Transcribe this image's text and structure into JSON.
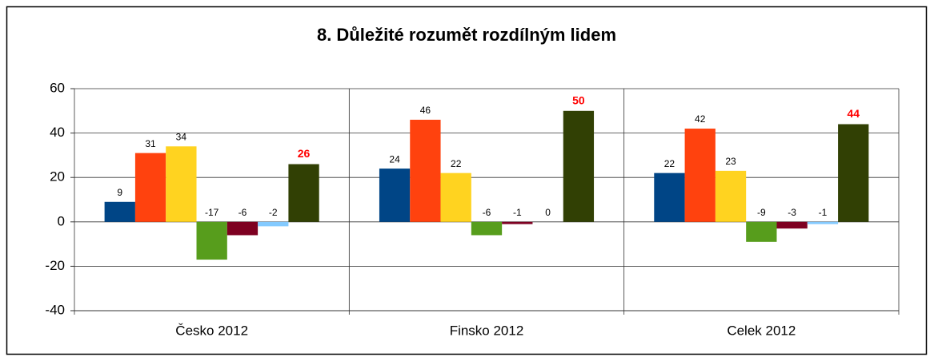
{
  "chart_data": {
    "type": "bar",
    "title": "8. Důležité rozumět rozdílným lidem",
    "categories": [
      "Česko 2012",
      "Finsko 2012",
      "Celek 2012"
    ],
    "series": [
      {
        "color": "#004586",
        "values": [
          9,
          24,
          22
        ]
      },
      {
        "color": "#ff420e",
        "values": [
          31,
          46,
          42
        ]
      },
      {
        "color": "#ffd320",
        "values": [
          34,
          22,
          23
        ]
      },
      {
        "color": "#579d1c",
        "values": [
          -17,
          -6,
          -9
        ]
      },
      {
        "color": "#7e0021",
        "values": [
          -6,
          -1,
          -3
        ]
      },
      {
        "color": "#83caff",
        "values": [
          -2,
          0,
          -1
        ]
      },
      {
        "color": "#314004",
        "values": [
          26,
          50,
          44
        ],
        "value_label_color": "#ff0000"
      }
    ],
    "ylim": [
      -40,
      60
    ],
    "yticks": [
      -40,
      -20,
      0,
      20,
      40,
      60
    ],
    "grid": true
  }
}
